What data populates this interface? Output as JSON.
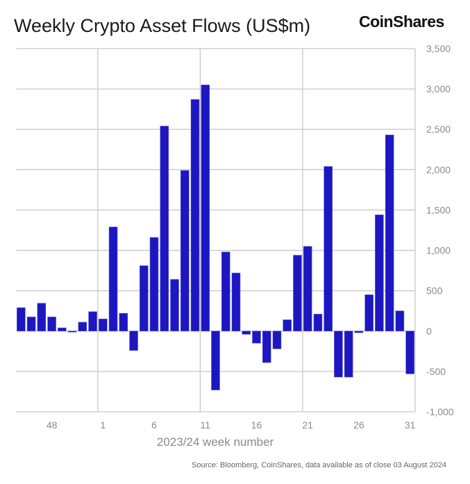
{
  "title": "Weekly Crypto Asset Flows (US$m)",
  "logo": "CoinShares",
  "source": "Source: Bloomberg, CoinShares, data available as of close 03 August 2024",
  "chart_data": {
    "type": "bar",
    "title": "Weekly Crypto Asset Flows (US$m)",
    "xlabel": "2023/24 week number",
    "ylabel": "",
    "ylim": [
      -1000,
      3500
    ],
    "yticks": [
      -1000,
      -500,
      0,
      500,
      1000,
      1500,
      2000,
      2500,
      3000,
      3500
    ],
    "ytick_labels": [
      "-1,000",
      "-500",
      "0",
      "500",
      "1,000",
      "1,500",
      "2,000",
      "2,500",
      "3,000",
      "3,500"
    ],
    "y_axis_side": "right",
    "grid": true,
    "bar_color": "#1c17c0",
    "categories": [
      "45",
      "46",
      "47",
      "48",
      "49",
      "50",
      "51",
      "52",
      "1",
      "2",
      "3",
      "4",
      "5",
      "6",
      "7",
      "8",
      "9",
      "10",
      "11",
      "12",
      "13",
      "14",
      "15",
      "16",
      "17",
      "18",
      "19",
      "20",
      "21",
      "22",
      "23",
      "24",
      "25",
      "26",
      "27",
      "28",
      "29",
      "30",
      "31"
    ],
    "xtick_labels": [
      "48",
      "1",
      "6",
      "11",
      "16",
      "21",
      "26",
      "31"
    ],
    "values": [
      290,
      175,
      345,
      175,
      40,
      -10,
      110,
      240,
      150,
      1290,
      220,
      -240,
      810,
      1160,
      2540,
      640,
      1990,
      2870,
      3050,
      -730,
      980,
      720,
      -40,
      -150,
      -390,
      -220,
      140,
      940,
      1050,
      210,
      2040,
      -570,
      -570,
      -20,
      450,
      1440,
      2430,
      250,
      -530
    ]
  }
}
